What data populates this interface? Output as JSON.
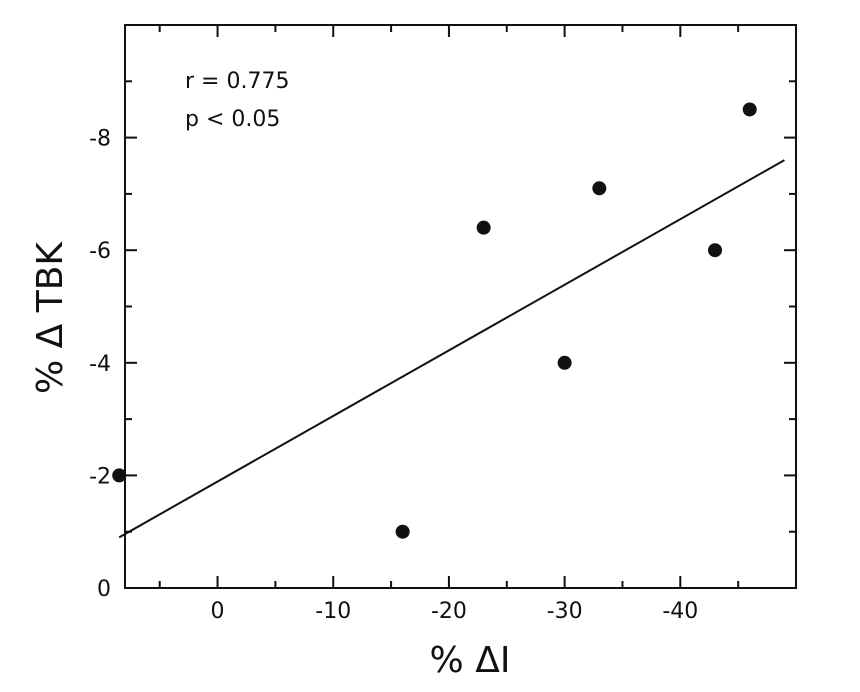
{
  "chart_data": {
    "type": "scatter",
    "title": "",
    "xlabel": "% ΔI",
    "ylabel": "% Δ TBK",
    "xlim": [
      8,
      -50
    ],
    "ylim": [
      0,
      -10
    ],
    "x_ticks": [
      0,
      -10,
      -20,
      -30,
      -40
    ],
    "x_tick_labels": [
      "0",
      "-10",
      "-20",
      "-30",
      "-40"
    ],
    "y_ticks": [
      0,
      -2,
      -4,
      -6,
      -8
    ],
    "y_tick_labels": [
      "0",
      "-2",
      "-4",
      "-6",
      "-8"
    ],
    "grid": false,
    "annotations": [
      "r = 0.775",
      "p < 0.05"
    ],
    "points": [
      {
        "x": 8.5,
        "y": -2.0
      },
      {
        "x": -16,
        "y": -1.0
      },
      {
        "x": -23,
        "y": -6.4
      },
      {
        "x": -30,
        "y": -4.0
      },
      {
        "x": -33,
        "y": -7.1
      },
      {
        "x": -43,
        "y": -6.0
      },
      {
        "x": -46,
        "y": -8.5
      }
    ],
    "fit_line": {
      "x": [
        8.5,
        -49
      ],
      "y": [
        -0.9,
        -7.6
      ]
    }
  }
}
